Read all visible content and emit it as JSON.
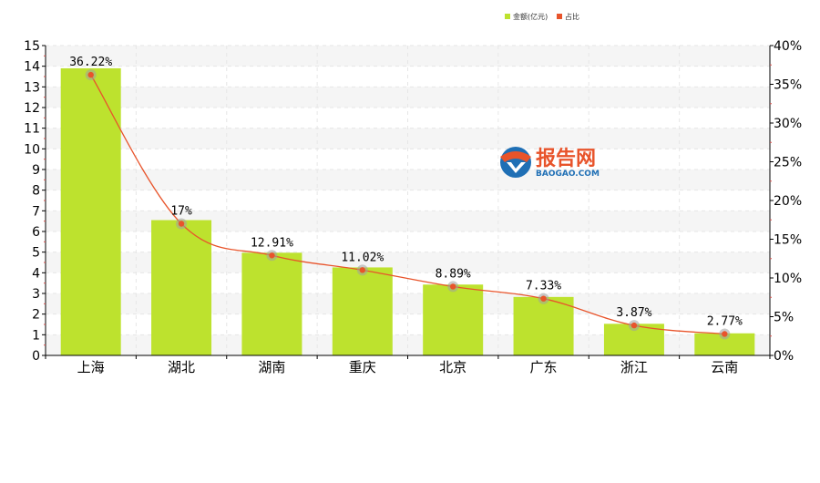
{
  "legend": {
    "bar_label": "金额(亿元)",
    "line_label": "占比"
  },
  "watermark": {
    "brand": "报告网",
    "domain": "BAOGAO.COM"
  },
  "colors": {
    "bar": "#bde22e",
    "line": "#e8542b",
    "marker_halo": "#a0a0a0",
    "logo_orange": "#e8542b",
    "logo_blue": "#1f6fb5"
  },
  "chart_data": {
    "type": "bar",
    "categories": [
      "上海",
      "湖北",
      "湖南",
      "重庆",
      "北京",
      "广东",
      "浙江",
      "云南"
    ],
    "series": [
      {
        "name": "金额(亿元)",
        "type": "bar",
        "axis": "left",
        "values": [
          13.9,
          6.55,
          4.97,
          4.26,
          3.43,
          2.83,
          1.53,
          1.07
        ]
      },
      {
        "name": "占比",
        "type": "line",
        "axis": "right",
        "values": [
          36.22,
          17,
          12.91,
          11.02,
          8.89,
          7.33,
          3.87,
          2.77
        ],
        "labels": [
          "36.22%",
          "17%",
          "12.91%",
          "11.02%",
          "8.89%",
          "7.33%",
          "3.87%",
          "2.77%"
        ]
      }
    ],
    "y_left": {
      "min": 0,
      "max": 15,
      "step": 1,
      "ticks": [
        "0",
        "1",
        "2",
        "3",
        "4",
        "5",
        "6",
        "7",
        "8",
        "9",
        "10",
        "11",
        "12",
        "13",
        "14",
        "15"
      ]
    },
    "y_right": {
      "min": 0,
      "max": 40,
      "step": 5,
      "ticks": [
        "0%",
        "5%",
        "10%",
        "15%",
        "20%",
        "25%",
        "30%",
        "35%",
        "40%"
      ]
    },
    "grid": true,
    "legend_position": "top-right"
  }
}
